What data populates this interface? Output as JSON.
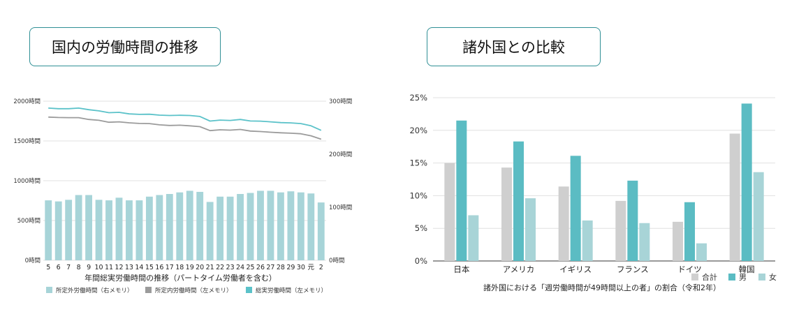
{
  "left_panel": {
    "title": "国内の労働時間の推移"
  },
  "right_panel": {
    "title": "諸外国との比較"
  },
  "colors": {
    "overtime": "#a7d4d8",
    "scheduled": "#9b9b9b",
    "total": "#5bc2c9",
    "all": "#cfcfcf",
    "male": "#5bbcc3",
    "female": "#a8d4d7",
    "border": "#2f8f95"
  },
  "chart_data": [
    {
      "type": "bar",
      "xlabel": "年間総実労働時間の推移（パートタイム労働者を含む）",
      "categories": [
        "5",
        "6",
        "7",
        "8",
        "9",
        "10",
        "11",
        "12",
        "13",
        "14",
        "15",
        "16",
        "17",
        "18",
        "19",
        "20",
        "21",
        "22",
        "23",
        "24",
        "25",
        "26",
        "27",
        "28",
        "29",
        "30",
        "元",
        "2"
      ],
      "ylim_left": [
        0,
        2000
      ],
      "ylim_right": [
        0,
        300
      ],
      "left_ticks": [
        "0時間",
        "500時間",
        "1000時間",
        "1500時間",
        "2000時間"
      ],
      "right_ticks": [
        "0時間",
        "100時間",
        "200時間",
        "300時間"
      ],
      "grid": true,
      "legend_position": "bottom",
      "series": [
        {
          "name": "所定外労働時間（右メモリ）",
          "kind": "bar",
          "axis": "right",
          "values": [
            113,
            111,
            114,
            123,
            123,
            114,
            113,
            118,
            113,
            113,
            120,
            123,
            125,
            128,
            131,
            129,
            110,
            120,
            120,
            125,
            127,
            131,
            131,
            128,
            130,
            128,
            126,
            109
          ]
        },
        {
          "name": "所定内労働時間（左メモリ）",
          "kind": "line",
          "axis": "left",
          "values": [
            1800,
            1795,
            1793,
            1793,
            1770,
            1760,
            1735,
            1740,
            1728,
            1720,
            1718,
            1703,
            1695,
            1698,
            1690,
            1680,
            1630,
            1640,
            1636,
            1645,
            1625,
            1618,
            1610,
            1603,
            1597,
            1590,
            1565,
            1522
          ]
        },
        {
          "name": "総実労働時間（左メモリ）",
          "kind": "line",
          "axis": "left",
          "values": [
            1913,
            1905,
            1905,
            1913,
            1893,
            1878,
            1855,
            1860,
            1840,
            1834,
            1836,
            1825,
            1820,
            1823,
            1820,
            1808,
            1750,
            1762,
            1758,
            1770,
            1751,
            1749,
            1740,
            1731,
            1727,
            1718,
            1690,
            1633
          ]
        }
      ]
    },
    {
      "type": "bar",
      "xlabel": "諸外国における「週労働時間が49時間以上の者」の割合（令和2年）",
      "categories": [
        "日本",
        "アメリカ",
        "イギリス",
        "フランス",
        "ドイツ",
        "韓国"
      ],
      "ylim": [
        0,
        25
      ],
      "y_ticks": [
        "0%",
        "5%",
        "10%",
        "15%",
        "20%",
        "25%"
      ],
      "grid": true,
      "legend_position": "bottom-right",
      "series": [
        {
          "name": "合計",
          "values": [
            15.0,
            14.3,
            11.4,
            9.2,
            6.0,
            19.5
          ]
        },
        {
          "name": "男",
          "values": [
            21.5,
            18.3,
            16.1,
            12.3,
            9.0,
            24.1
          ]
        },
        {
          "name": "女",
          "values": [
            7.0,
            9.6,
            6.2,
            5.8,
            2.7,
            13.6
          ]
        }
      ]
    }
  ]
}
